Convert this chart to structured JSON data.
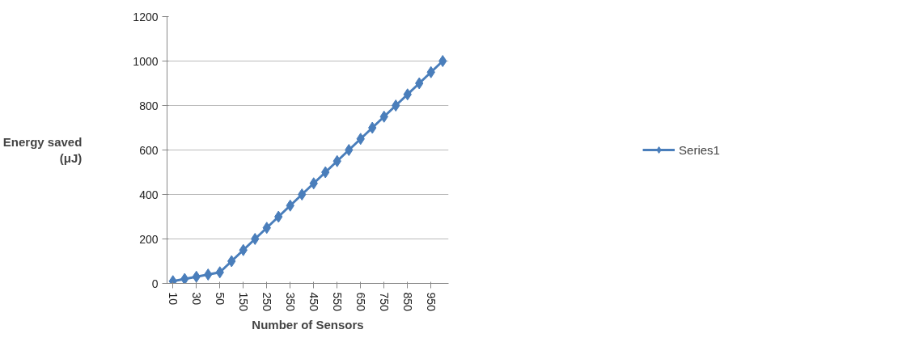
{
  "chart_data": {
    "type": "line",
    "xlabel": "Number of Sensors",
    "ylabel": "Energy saved (μJ)",
    "categories": [
      "10",
      null,
      "30",
      null,
      "50",
      null,
      "150",
      null,
      "250",
      null,
      "350",
      null,
      "450",
      null,
      "550",
      null,
      "650",
      null,
      "750",
      null,
      "850",
      null,
      "950",
      null
    ],
    "series": [
      {
        "name": "Series1",
        "color": "#4a7ebb",
        "values": [
          10,
          20,
          30,
          40,
          50,
          100,
          150,
          200,
          250,
          300,
          350,
          400,
          450,
          500,
          550,
          600,
          650,
          700,
          750,
          800,
          850,
          900,
          950,
          1000
        ]
      }
    ],
    "ylim": [
      0,
      1200
    ],
    "yticks": [
      0,
      200,
      400,
      600,
      800,
      1000,
      1200
    ],
    "grid": "y",
    "legend": "right",
    "marker": "diamond",
    "line_style": "solid"
  }
}
